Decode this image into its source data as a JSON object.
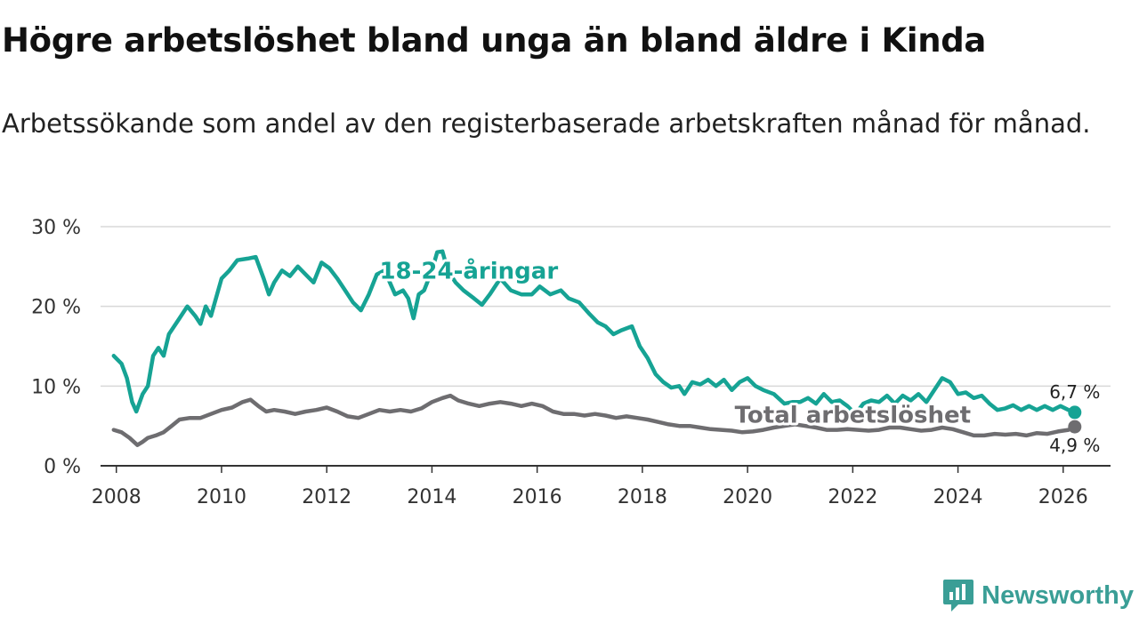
{
  "header": {
    "title": "Högre arbetslöshet bland unga än bland äldre i Kinda",
    "subtitle": "Arbetssökande som andel av den registerbaserade arbetskraften månad för månad."
  },
  "brand": {
    "name": "Newsworthy",
    "icon": "newsworthy-logo-icon",
    "color": "#3a9e96"
  },
  "chart_data": {
    "type": "line",
    "title": "Högre arbetslöshet bland unga än bland äldre i Kinda",
    "xlabel": "",
    "ylabel": "",
    "xlim": [
      2007.7,
      2026.9
    ],
    "ylim": [
      0,
      30
    ],
    "x_ticks": [
      2008,
      2010,
      2012,
      2014,
      2016,
      2018,
      2020,
      2022,
      2024,
      2026
    ],
    "x_tick_labels": [
      "2008",
      "2010",
      "2012",
      "2014",
      "2016",
      "2018",
      "2020",
      "2022",
      "2024",
      "2026"
    ],
    "y_ticks": [
      0,
      10,
      20,
      30
    ],
    "y_tick_labels": [
      "0 %",
      "10 %",
      "20 %",
      "30 %"
    ],
    "grid": true,
    "series": [
      {
        "name": "18-24-åringar",
        "color": "#16a394",
        "end_label": "6,7 %",
        "points": [
          [
            2007.95,
            13.8
          ],
          [
            2008.1,
            12.8
          ],
          [
            2008.2,
            11.0
          ],
          [
            2008.3,
            8.0
          ],
          [
            2008.38,
            6.8
          ],
          [
            2008.5,
            9.0
          ],
          [
            2008.6,
            10.0
          ],
          [
            2008.7,
            13.8
          ],
          [
            2008.8,
            14.8
          ],
          [
            2008.9,
            13.8
          ],
          [
            2009.0,
            16.5
          ],
          [
            2009.2,
            18.5
          ],
          [
            2009.35,
            20.0
          ],
          [
            2009.5,
            18.8
          ],
          [
            2009.6,
            17.8
          ],
          [
            2009.7,
            20.0
          ],
          [
            2009.8,
            18.8
          ],
          [
            2010.0,
            23.5
          ],
          [
            2010.15,
            24.5
          ],
          [
            2010.3,
            25.8
          ],
          [
            2010.5,
            26.0
          ],
          [
            2010.65,
            26.2
          ],
          [
            2010.8,
            23.5
          ],
          [
            2010.9,
            21.5
          ],
          [
            2011.0,
            23.0
          ],
          [
            2011.15,
            24.5
          ],
          [
            2011.3,
            23.8
          ],
          [
            2011.45,
            25.0
          ],
          [
            2011.6,
            24.0
          ],
          [
            2011.75,
            23.0
          ],
          [
            2011.9,
            25.5
          ],
          [
            2012.05,
            24.8
          ],
          [
            2012.2,
            23.5
          ],
          [
            2012.35,
            22.0
          ],
          [
            2012.5,
            20.5
          ],
          [
            2012.65,
            19.5
          ],
          [
            2012.8,
            21.5
          ],
          [
            2012.95,
            24.0
          ],
          [
            2013.1,
            24.5
          ],
          [
            2013.3,
            21.5
          ],
          [
            2013.45,
            22.0
          ],
          [
            2013.55,
            21.0
          ],
          [
            2013.65,
            18.5
          ],
          [
            2013.75,
            21.5
          ],
          [
            2013.85,
            22.0
          ],
          [
            2014.0,
            24.5
          ],
          [
            2014.1,
            26.8
          ],
          [
            2014.2,
            26.9
          ],
          [
            2014.3,
            24.5
          ],
          [
            2014.45,
            23.0
          ],
          [
            2014.6,
            22.0
          ],
          [
            2014.8,
            21.0
          ],
          [
            2014.95,
            20.2
          ],
          [
            2015.1,
            21.5
          ],
          [
            2015.3,
            23.5
          ],
          [
            2015.5,
            22.0
          ],
          [
            2015.7,
            21.5
          ],
          [
            2015.9,
            21.5
          ],
          [
            2016.05,
            22.5
          ],
          [
            2016.25,
            21.5
          ],
          [
            2016.45,
            22.0
          ],
          [
            2016.6,
            21.0
          ],
          [
            2016.8,
            20.5
          ],
          [
            2017.0,
            19.0
          ],
          [
            2017.15,
            18.0
          ],
          [
            2017.3,
            17.5
          ],
          [
            2017.45,
            16.5
          ],
          [
            2017.6,
            17.0
          ],
          [
            2017.8,
            17.5
          ],
          [
            2017.95,
            15.0
          ],
          [
            2018.1,
            13.5
          ],
          [
            2018.25,
            11.5
          ],
          [
            2018.4,
            10.5
          ],
          [
            2018.55,
            9.8
          ],
          [
            2018.7,
            10.0
          ],
          [
            2018.8,
            9.0
          ],
          [
            2018.95,
            10.5
          ],
          [
            2019.1,
            10.2
          ],
          [
            2019.25,
            10.8
          ],
          [
            2019.4,
            10.0
          ],
          [
            2019.55,
            10.8
          ],
          [
            2019.7,
            9.5
          ],
          [
            2019.85,
            10.5
          ],
          [
            2020.0,
            11.0
          ],
          [
            2020.15,
            10.0
          ],
          [
            2020.3,
            9.5
          ],
          [
            2020.5,
            9.0
          ],
          [
            2020.7,
            7.8
          ],
          [
            2020.85,
            8.0
          ],
          [
            2021.0,
            8.0
          ],
          [
            2021.15,
            8.5
          ],
          [
            2021.3,
            7.8
          ],
          [
            2021.45,
            9.0
          ],
          [
            2021.6,
            8.0
          ],
          [
            2021.75,
            8.2
          ],
          [
            2021.9,
            7.5
          ],
          [
            2022.05,
            6.5
          ],
          [
            2022.2,
            7.8
          ],
          [
            2022.35,
            8.2
          ],
          [
            2022.5,
            8.0
          ],
          [
            2022.65,
            8.8
          ],
          [
            2022.8,
            7.8
          ],
          [
            2022.95,
            8.8
          ],
          [
            2023.1,
            8.2
          ],
          [
            2023.25,
            9.0
          ],
          [
            2023.4,
            8.0
          ],
          [
            2023.55,
            9.5
          ],
          [
            2023.7,
            11.0
          ],
          [
            2023.85,
            10.5
          ],
          [
            2024.0,
            9.0
          ],
          [
            2024.15,
            9.2
          ],
          [
            2024.3,
            8.5
          ],
          [
            2024.45,
            8.8
          ],
          [
            2024.6,
            7.8
          ],
          [
            2024.75,
            7.0
          ],
          [
            2024.9,
            7.2
          ],
          [
            2025.05,
            7.6
          ],
          [
            2025.2,
            7.0
          ],
          [
            2025.35,
            7.5
          ],
          [
            2025.5,
            7.0
          ],
          [
            2025.65,
            7.5
          ],
          [
            2025.8,
            7.0
          ],
          [
            2025.95,
            7.5
          ],
          [
            2026.1,
            7.0
          ],
          [
            2026.22,
            6.7
          ]
        ]
      },
      {
        "name": "Total arbetslöshet",
        "color": "#6e6d70",
        "end_label": "4,9 %",
        "points": [
          [
            2007.95,
            4.5
          ],
          [
            2008.1,
            4.2
          ],
          [
            2008.25,
            3.5
          ],
          [
            2008.4,
            2.6
          ],
          [
            2008.5,
            3.0
          ],
          [
            2008.6,
            3.5
          ],
          [
            2008.75,
            3.8
          ],
          [
            2008.9,
            4.2
          ],
          [
            2009.05,
            5.0
          ],
          [
            2009.2,
            5.8
          ],
          [
            2009.4,
            6.0
          ],
          [
            2009.6,
            6.0
          ],
          [
            2009.8,
            6.5
          ],
          [
            2010.0,
            7.0
          ],
          [
            2010.2,
            7.3
          ],
          [
            2010.4,
            8.0
          ],
          [
            2010.55,
            8.3
          ],
          [
            2010.7,
            7.5
          ],
          [
            2010.85,
            6.8
          ],
          [
            2011.0,
            7.0
          ],
          [
            2011.2,
            6.8
          ],
          [
            2011.4,
            6.5
          ],
          [
            2011.6,
            6.8
          ],
          [
            2011.8,
            7.0
          ],
          [
            2012.0,
            7.3
          ],
          [
            2012.2,
            6.8
          ],
          [
            2012.4,
            6.2
          ],
          [
            2012.6,
            6.0
          ],
          [
            2012.8,
            6.5
          ],
          [
            2013.0,
            7.0
          ],
          [
            2013.2,
            6.8
          ],
          [
            2013.4,
            7.0
          ],
          [
            2013.6,
            6.8
          ],
          [
            2013.8,
            7.2
          ],
          [
            2014.0,
            8.0
          ],
          [
            2014.2,
            8.5
          ],
          [
            2014.35,
            8.8
          ],
          [
            2014.5,
            8.2
          ],
          [
            2014.7,
            7.8
          ],
          [
            2014.9,
            7.5
          ],
          [
            2015.1,
            7.8
          ],
          [
            2015.3,
            8.0
          ],
          [
            2015.5,
            7.8
          ],
          [
            2015.7,
            7.5
          ],
          [
            2015.9,
            7.8
          ],
          [
            2016.1,
            7.5
          ],
          [
            2016.3,
            6.8
          ],
          [
            2016.5,
            6.5
          ],
          [
            2016.7,
            6.5
          ],
          [
            2016.9,
            6.3
          ],
          [
            2017.1,
            6.5
          ],
          [
            2017.3,
            6.3
          ],
          [
            2017.5,
            6.0
          ],
          [
            2017.7,
            6.2
          ],
          [
            2017.9,
            6.0
          ],
          [
            2018.1,
            5.8
          ],
          [
            2018.3,
            5.5
          ],
          [
            2018.5,
            5.2
          ],
          [
            2018.7,
            5.0
          ],
          [
            2018.9,
            5.0
          ],
          [
            2019.1,
            4.8
          ],
          [
            2019.3,
            4.6
          ],
          [
            2019.5,
            4.5
          ],
          [
            2019.7,
            4.4
          ],
          [
            2019.9,
            4.2
          ],
          [
            2020.1,
            4.3
          ],
          [
            2020.3,
            4.5
          ],
          [
            2020.5,
            4.8
          ],
          [
            2020.7,
            5.0
          ],
          [
            2020.9,
            5.2
          ],
          [
            2021.1,
            5.0
          ],
          [
            2021.3,
            4.8
          ],
          [
            2021.5,
            4.5
          ],
          [
            2021.7,
            4.5
          ],
          [
            2021.9,
            4.6
          ],
          [
            2022.1,
            4.5
          ],
          [
            2022.3,
            4.4
          ],
          [
            2022.5,
            4.5
          ],
          [
            2022.7,
            4.8
          ],
          [
            2022.9,
            4.8
          ],
          [
            2023.1,
            4.6
          ],
          [
            2023.3,
            4.4
          ],
          [
            2023.5,
            4.5
          ],
          [
            2023.7,
            4.8
          ],
          [
            2023.9,
            4.6
          ],
          [
            2024.1,
            4.2
          ],
          [
            2024.3,
            3.8
          ],
          [
            2024.5,
            3.8
          ],
          [
            2024.7,
            4.0
          ],
          [
            2024.9,
            3.9
          ],
          [
            2025.1,
            4.0
          ],
          [
            2025.3,
            3.8
          ],
          [
            2025.5,
            4.1
          ],
          [
            2025.7,
            4.0
          ],
          [
            2025.9,
            4.3
          ],
          [
            2026.1,
            4.5
          ],
          [
            2026.22,
            4.9
          ]
        ]
      }
    ],
    "annotations": [
      {
        "text": "18-24-åringar",
        "series": 0,
        "at": [
          2014.7,
          23.5
        ]
      },
      {
        "text": "Total arbetslöshet",
        "series": 1,
        "at": [
          2022.0,
          5.4
        ]
      }
    ]
  }
}
